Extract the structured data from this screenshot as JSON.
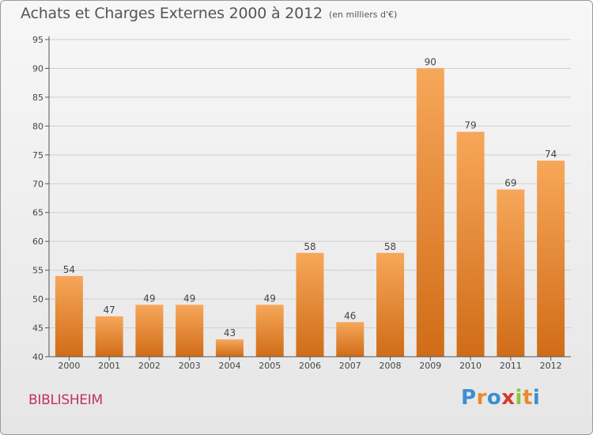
{
  "title": "Achats et Charges Externes 2000 à 2012",
  "subtitle": "(en milliers d'€)",
  "commune": "BIBLISHEIM",
  "logo": {
    "letters": [
      "P",
      "r",
      "o",
      "x",
      "i",
      "t",
      "i"
    ],
    "colors": [
      "#3a8fd0",
      "#e98a2b",
      "#3a8fd0",
      "#d13b2c",
      "#8bc53f",
      "#e98a2b",
      "#3a8fd0"
    ]
  },
  "colors": {
    "bar_top": "#f7a75a",
    "bar_bottom": "#d06c17",
    "grid": "#cfcfcf",
    "axis": "#555555"
  },
  "chart_data": {
    "type": "bar",
    "categories": [
      "2000",
      "2001",
      "2002",
      "2003",
      "2004",
      "2005",
      "2006",
      "2007",
      "2008",
      "2009",
      "2010",
      "2011",
      "2012"
    ],
    "values": [
      54,
      47,
      49,
      49,
      43,
      49,
      58,
      46,
      58,
      90,
      79,
      69,
      74
    ],
    "title": "Achats et Charges Externes 2000 à 2012",
    "ylim": [
      40,
      95
    ],
    "yticks": [
      40,
      45,
      50,
      55,
      60,
      65,
      70,
      75,
      80,
      85,
      90,
      95
    ],
    "grid": true,
    "data_labels": true
  }
}
